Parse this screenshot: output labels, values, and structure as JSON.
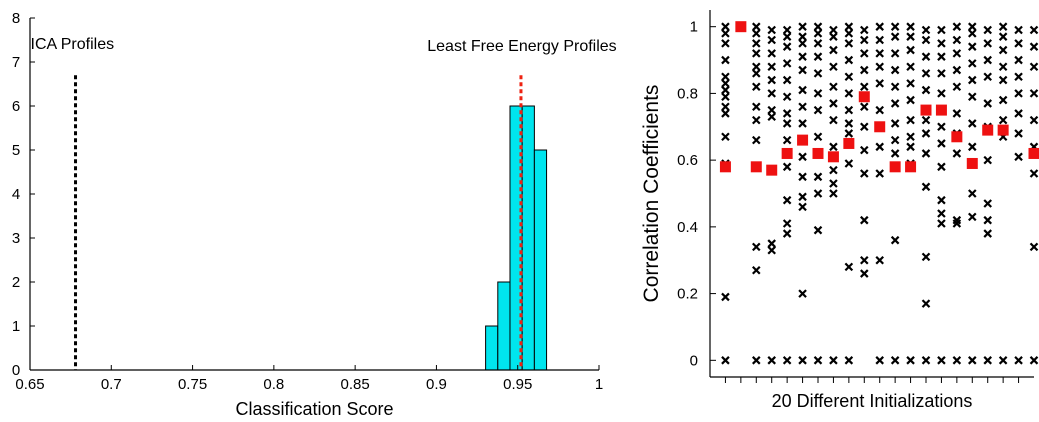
{
  "chart_data": [
    {
      "type": "bar",
      "subtype": "histogram",
      "xlabel": "Classification Score",
      "ylabel": "",
      "xlim": [
        0.65,
        1
      ],
      "ylim": [
        0,
        8
      ],
      "x_ticks": [
        "0.65",
        "0.7",
        "0.75",
        "0.8",
        "0.85",
        "0.9",
        "0.95",
        "1"
      ],
      "y_ticks": [
        "0",
        "1",
        "2",
        "3",
        "4",
        "5",
        "6",
        "7",
        "8"
      ],
      "bin_width": 0.0075,
      "bins": [
        {
          "x": 0.934,
          "value": 1
        },
        {
          "x": 0.9415,
          "value": 2
        },
        {
          "x": 0.949,
          "value": 6
        },
        {
          "x": 0.9565,
          "value": 6
        },
        {
          "x": 0.964,
          "value": 5
        }
      ],
      "bar_color": "#00e5ee",
      "reference_lines": [
        {
          "label": "ICA Profiles",
          "x": 0.678,
          "color": "#000000",
          "style": "dashed"
        },
        {
          "label": "Least Free Energy Profiles",
          "x": 0.952,
          "color": "#ee2211",
          "style": "dashed"
        }
      ]
    },
    {
      "type": "scatter",
      "xlabel": "20 Different Initializations",
      "ylabel": "Correlation Coefficients",
      "xlim": [
        0,
        21
      ],
      "ylim": [
        -0.05,
        1.05
      ],
      "y_ticks": [
        "0",
        "0.2",
        "0.4",
        "0.6",
        "0.8",
        "1"
      ],
      "num_x_ticks": 20,
      "series": [
        {
          "name": "",
          "marker": "x",
          "color": "#000000",
          "points": [
            [
              1,
              0
            ],
            [
              1,
              0.19
            ],
            [
              1,
              0.59
            ],
            [
              1,
              0.67
            ],
            [
              1,
              0.74
            ],
            [
              1,
              0.76
            ],
            [
              1,
              0.79
            ],
            [
              1,
              0.81
            ],
            [
              1,
              0.83
            ],
            [
              1,
              0.85
            ],
            [
              1,
              0.9
            ],
            [
              1,
              0.95
            ],
            [
              1,
              0.98
            ],
            [
              1,
              1.0
            ],
            [
              3,
              0
            ],
            [
              3,
              0.27
            ],
            [
              3,
              0.34
            ],
            [
              3,
              0.58
            ],
            [
              3,
              0.66
            ],
            [
              3,
              0.72
            ],
            [
              3,
              0.76
            ],
            [
              3,
              0.82
            ],
            [
              3,
              0.86
            ],
            [
              3,
              0.88
            ],
            [
              3,
              0.92
            ],
            [
              3,
              0.95
            ],
            [
              3,
              0.98
            ],
            [
              3,
              1.0
            ],
            [
              4,
              0
            ],
            [
              4,
              0.33
            ],
            [
              4,
              0.35
            ],
            [
              4,
              0.57
            ],
            [
              4,
              0.73
            ],
            [
              4,
              0.75
            ],
            [
              4,
              0.8
            ],
            [
              4,
              0.84
            ],
            [
              4,
              0.88
            ],
            [
              4,
              0.92
            ],
            [
              4,
              0.96
            ],
            [
              4,
              0.99
            ],
            [
              5,
              0
            ],
            [
              5,
              0.38
            ],
            [
              5,
              0.41
            ],
            [
              5,
              0.48
            ],
            [
              5,
              0.58
            ],
            [
              5,
              0.66
            ],
            [
              5,
              0.71
            ],
            [
              5,
              0.74
            ],
            [
              5,
              0.79
            ],
            [
              5,
              0.84
            ],
            [
              5,
              0.89
            ],
            [
              5,
              0.94
            ],
            [
              5,
              0.97
            ],
            [
              5,
              0.99
            ],
            [
              6,
              0
            ],
            [
              6,
              0.2
            ],
            [
              6,
              0.46
            ],
            [
              6,
              0.49
            ],
            [
              6,
              0.55
            ],
            [
              6,
              0.61
            ],
            [
              6,
              0.71
            ],
            [
              6,
              0.76
            ],
            [
              6,
              0.81
            ],
            [
              6,
              0.87
            ],
            [
              6,
              0.91
            ],
            [
              6,
              0.95
            ],
            [
              6,
              0.97
            ],
            [
              6,
              1.0
            ],
            [
              7,
              0
            ],
            [
              7,
              0.39
            ],
            [
              7,
              0.5
            ],
            [
              7,
              0.55
            ],
            [
              7,
              0.67
            ],
            [
              7,
              0.75
            ],
            [
              7,
              0.8
            ],
            [
              7,
              0.86
            ],
            [
              7,
              0.91
            ],
            [
              7,
              0.95
            ],
            [
              7,
              0.98
            ],
            [
              7,
              1.0
            ],
            [
              8,
              0
            ],
            [
              8,
              0.5
            ],
            [
              8,
              0.53
            ],
            [
              8,
              0.57
            ],
            [
              8,
              0.64
            ],
            [
              8,
              0.72
            ],
            [
              8,
              0.77
            ],
            [
              8,
              0.82
            ],
            [
              8,
              0.88
            ],
            [
              8,
              0.93
            ],
            [
              8,
              0.97
            ],
            [
              8,
              0.99
            ],
            [
              9,
              0
            ],
            [
              9,
              0.28
            ],
            [
              9,
              0.59
            ],
            [
              9,
              0.68
            ],
            [
              9,
              0.71
            ],
            [
              9,
              0.75
            ],
            [
              9,
              0.8
            ],
            [
              9,
              0.85
            ],
            [
              9,
              0.9
            ],
            [
              9,
              0.95
            ],
            [
              9,
              0.98
            ],
            [
              9,
              1.0
            ],
            [
              10,
              0.26
            ],
            [
              10,
              0.3
            ],
            [
              10,
              0.42
            ],
            [
              10,
              0.56
            ],
            [
              10,
              0.63
            ],
            [
              10,
              0.7
            ],
            [
              10,
              0.76
            ],
            [
              10,
              0.82
            ],
            [
              10,
              0.87
            ],
            [
              10,
              0.92
            ],
            [
              10,
              0.96
            ],
            [
              10,
              0.99
            ],
            [
              11,
              0
            ],
            [
              11,
              0.3
            ],
            [
              11,
              0.56
            ],
            [
              11,
              0.64
            ],
            [
              11,
              0.75
            ],
            [
              11,
              0.83
            ],
            [
              11,
              0.88
            ],
            [
              11,
              0.92
            ],
            [
              11,
              0.96
            ],
            [
              11,
              1.0
            ],
            [
              12,
              0
            ],
            [
              12,
              0.36
            ],
            [
              12,
              0.58
            ],
            [
              12,
              0.62
            ],
            [
              12,
              0.66
            ],
            [
              12,
              0.71
            ],
            [
              12,
              0.77
            ],
            [
              12,
              0.82
            ],
            [
              12,
              0.87
            ],
            [
              12,
              0.92
            ],
            [
              12,
              0.97
            ],
            [
              12,
              1.0
            ],
            [
              13,
              0
            ],
            [
              13,
              0.59
            ],
            [
              13,
              0.64
            ],
            [
              13,
              0.67
            ],
            [
              13,
              0.72
            ],
            [
              13,
              0.78
            ],
            [
              13,
              0.83
            ],
            [
              13,
              0.88
            ],
            [
              13,
              0.93
            ],
            [
              13,
              0.97
            ],
            [
              13,
              1.0
            ],
            [
              14,
              0
            ],
            [
              14,
              0.17
            ],
            [
              14,
              0.31
            ],
            [
              14,
              0.52
            ],
            [
              14,
              0.62
            ],
            [
              14,
              0.68
            ],
            [
              14,
              0.72
            ],
            [
              14,
              0.81
            ],
            [
              14,
              0.86
            ],
            [
              14,
              0.91
            ],
            [
              14,
              0.96
            ],
            [
              14,
              0.99
            ],
            [
              15,
              0
            ],
            [
              15,
              0.41
            ],
            [
              15,
              0.44
            ],
            [
              15,
              0.48
            ],
            [
              15,
              0.58
            ],
            [
              15,
              0.65
            ],
            [
              15,
              0.7
            ],
            [
              15,
              0.8
            ],
            [
              15,
              0.86
            ],
            [
              15,
              0.91
            ],
            [
              15,
              0.95
            ],
            [
              15,
              0.99
            ],
            [
              16,
              0
            ],
            [
              16,
              0.41
            ],
            [
              16,
              0.42
            ],
            [
              16,
              0.62
            ],
            [
              16,
              0.68
            ],
            [
              16,
              0.74
            ],
            [
              16,
              0.82
            ],
            [
              16,
              0.87
            ],
            [
              16,
              0.92
            ],
            [
              16,
              0.96
            ],
            [
              16,
              1.0
            ],
            [
              17,
              0
            ],
            [
              17,
              0.43
            ],
            [
              17,
              0.5
            ],
            [
              17,
              0.64
            ],
            [
              17,
              0.71
            ],
            [
              17,
              0.79
            ],
            [
              17,
              0.84
            ],
            [
              17,
              0.89
            ],
            [
              17,
              0.94
            ],
            [
              17,
              0.98
            ],
            [
              17,
              1.0
            ],
            [
              18,
              0
            ],
            [
              18,
              0.38
            ],
            [
              18,
              0.42
            ],
            [
              18,
              0.47
            ],
            [
              18,
              0.6
            ],
            [
              18,
              0.7
            ],
            [
              18,
              0.77
            ],
            [
              18,
              0.85
            ],
            [
              18,
              0.9
            ],
            [
              18,
              0.95
            ],
            [
              18,
              0.99
            ],
            [
              19,
              0
            ],
            [
              19,
              0.67
            ],
            [
              19,
              0.72
            ],
            [
              19,
              0.78
            ],
            [
              19,
              0.84
            ],
            [
              19,
              0.88
            ],
            [
              19,
              0.93
            ],
            [
              19,
              0.97
            ],
            [
              19,
              1.0
            ],
            [
              20,
              0
            ],
            [
              20,
              0.61
            ],
            [
              20,
              0.68
            ],
            [
              20,
              0.74
            ],
            [
              20,
              0.8
            ],
            [
              20,
              0.85
            ],
            [
              20,
              0.9
            ],
            [
              20,
              0.95
            ],
            [
              20,
              0.99
            ],
            [
              21,
              0
            ],
            [
              21,
              0.34
            ],
            [
              21,
              0.56
            ],
            [
              21,
              0.64
            ],
            [
              21,
              0.72
            ],
            [
              21,
              0.8
            ],
            [
              21,
              0.88
            ],
            [
              21,
              0.94
            ],
            [
              21,
              0.99
            ]
          ]
        },
        {
          "name": "",
          "marker": "square",
          "color": "#ee1111",
          "points": [
            [
              1,
              0.58
            ],
            [
              2,
              1.0
            ],
            [
              3,
              0.58
            ],
            [
              4,
              0.57
            ],
            [
              5,
              0.62
            ],
            [
              6,
              0.66
            ],
            [
              7,
              0.62
            ],
            [
              8,
              0.61
            ],
            [
              9,
              0.65
            ],
            [
              10,
              0.79
            ],
            [
              11,
              0.7
            ],
            [
              12,
              0.58
            ],
            [
              13,
              0.58
            ],
            [
              14,
              0.75
            ],
            [
              15,
              0.75
            ],
            [
              16,
              0.67
            ],
            [
              17,
              0.59
            ],
            [
              18,
              0.69
            ],
            [
              19,
              0.69
            ],
            [
              21,
              0.62
            ]
          ]
        }
      ]
    }
  ]
}
